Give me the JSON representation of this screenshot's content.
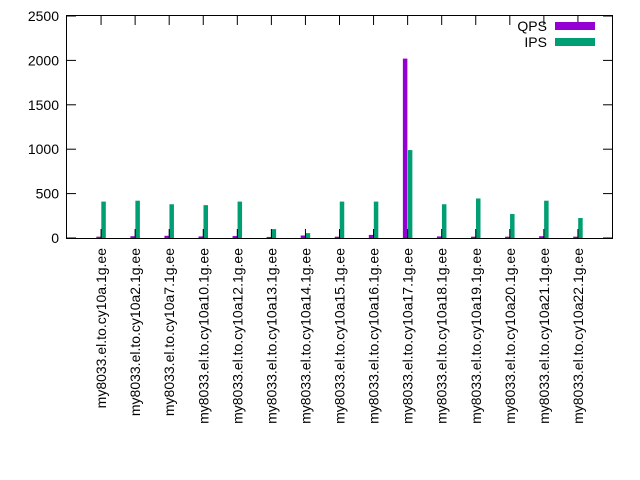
{
  "chart_data": {
    "type": "bar",
    "title": "",
    "xlabel": "",
    "ylabel": "",
    "ylim": [
      0,
      2500
    ],
    "yticks": [
      "0",
      "500",
      "1000",
      "1500",
      "2000",
      "2500"
    ],
    "grid": false,
    "legend_position": "top-right",
    "categories": [
      "my8033.el.to.cy10a.1g.ee",
      "my8033.el.to.cy10a2.1g.ee",
      "my8033.el.to.cy10a7.1g.ee",
      "my8033.el.to.cy10a10.1g.ee",
      "my8033.el.to.cy10a12.1g.ee",
      "my8033.el.to.cy10a13.1g.ee",
      "my8033.el.to.cy10a14.1g.ee",
      "my8033.el.to.cy10a15.1g.ee",
      "my8033.el.to.cy10a16.1g.ee",
      "my8033.el.to.cy10a17.1g.ee",
      "my8033.el.to.cy10a18.1g.ee",
      "my8033.el.to.cy10a19.1g.ee",
      "my8033.el.to.cy10a20.1g.ee",
      "my8033.el.to.cy10a21.1g.ee",
      "my8033.el.to.cy10a22.1g.ee"
    ],
    "series": [
      {
        "name": "QPS",
        "color": "#9400d3",
        "values": [
          15,
          20,
          25,
          18,
          22,
          12,
          28,
          15,
          35,
          2020,
          18,
          15,
          15,
          20,
          15
        ]
      },
      {
        "name": "IPS",
        "color": "#009e73",
        "values": [
          410,
          420,
          380,
          370,
          410,
          100,
          55,
          410,
          410,
          990,
          380,
          445,
          270,
          420,
          225
        ]
      }
    ]
  }
}
